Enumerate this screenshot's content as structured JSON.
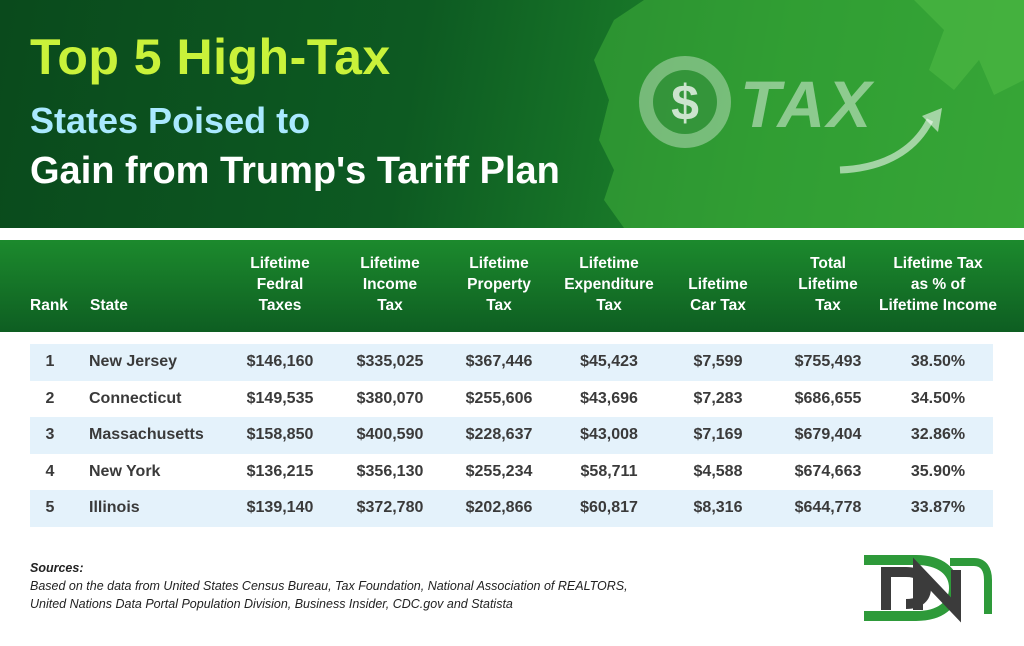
{
  "header": {
    "title_line1": "Top 5 High-Tax",
    "title_line2": "States Poised to",
    "title_line3": "Gain from Trump's Tariff Plan",
    "tax_graphic_word": "TAX",
    "tax_graphic_symbol": "$"
  },
  "table": {
    "columns": [
      "Rank",
      "State",
      "Lifetime Fedral Taxes",
      "Lifetime Income Tax",
      "Lifetime Property Tax",
      "Lifetime Expenditure Tax",
      "Lifetime Car Tax",
      "Total Lifetime Tax",
      "Lifetime Tax as % of Lifetime Income"
    ],
    "column_lines": [
      [
        "Rank"
      ],
      [
        "State"
      ],
      [
        "Lifetime",
        "Fedral",
        "Taxes"
      ],
      [
        "Lifetime",
        "Income",
        "Tax"
      ],
      [
        "Lifetime",
        "Property",
        "Tax"
      ],
      [
        "Lifetime",
        "Expenditure",
        "Tax"
      ],
      [
        "Lifetime",
        "Car Tax"
      ],
      [
        "Total",
        "Lifetime",
        "Tax"
      ],
      [
        "Lifetime Tax",
        "as % of",
        "Lifetime Income"
      ]
    ],
    "rows": [
      [
        "1",
        "New Jersey",
        "$146,160",
        "$335,025",
        "$367,446",
        "$45,423",
        "$7,599",
        "$755,493",
        "38.50%"
      ],
      [
        "2",
        "Connecticut",
        "$149,535",
        "$380,070",
        "$255,606",
        "$43,696",
        "$7,283",
        "$686,655",
        "34.50%"
      ],
      [
        "3",
        "Massachusetts",
        "$158,850",
        "$400,590",
        "$228,637",
        "$43,008",
        "$7,169",
        "$679,404",
        "32.86%"
      ],
      [
        "4",
        "New York",
        "$136,215",
        "$356,130",
        "$255,234",
        "$58,711",
        "$4,588",
        "$674,663",
        "35.90%"
      ],
      [
        "5",
        "Illinois",
        "$139,140",
        "$372,780",
        "$202,866",
        "$60,817",
        "$8,316",
        "$644,778",
        "33.87%"
      ]
    ]
  },
  "footer": {
    "sources_label": "Sources:",
    "sources_line1": "Based on the data from United States Census Bureau, Tax Foundation, National Association of REALTORS,",
    "sources_line2": "United Nations Data Portal Population Division, Business Insider, CDC.gov and Statista"
  },
  "logo": {
    "letters": "DN"
  },
  "colors": {
    "banner_dark": "#0a4a1c",
    "banner_light": "#2c9b33",
    "title_lime": "#c9f23a",
    "title_cyan": "#a9e9ff",
    "header_green": "#1c8a2d",
    "row_shade": "#e4f2fb",
    "logo_green": "#2e9a3a"
  }
}
